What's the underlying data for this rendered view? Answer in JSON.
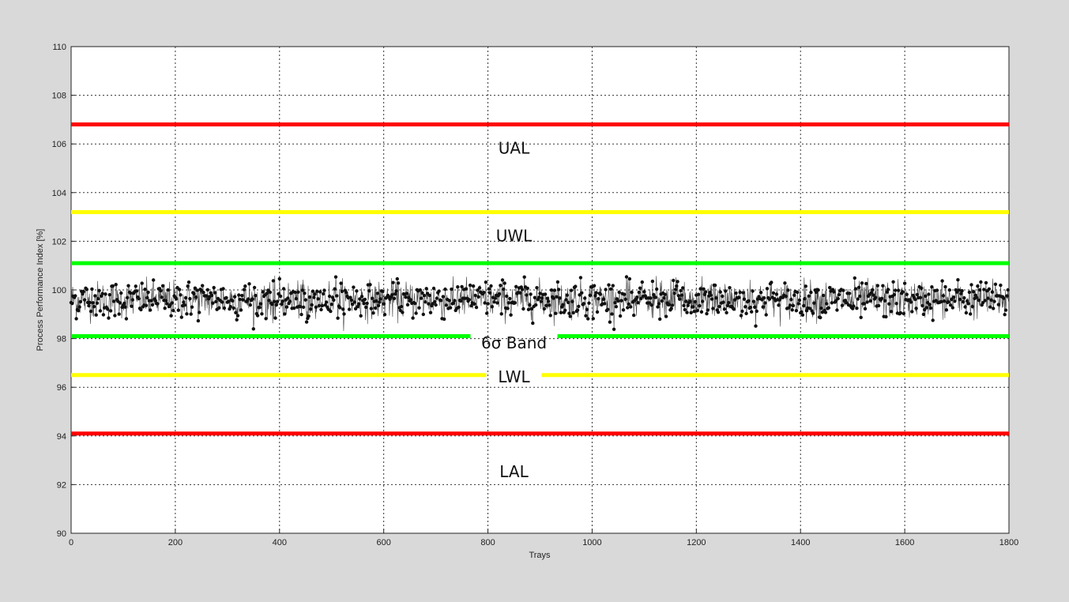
{
  "chart_data": {
    "type": "scatter",
    "title": "",
    "xlabel": "Trays",
    "ylabel": "Process Performance Index [%]",
    "xlim": [
      0,
      1800
    ],
    "ylim": [
      90,
      110
    ],
    "xticks": [
      0,
      200,
      400,
      600,
      800,
      1000,
      1200,
      1400,
      1600,
      1800
    ],
    "yticks": [
      90,
      92,
      94,
      96,
      98,
      100,
      102,
      104,
      106,
      108,
      110
    ],
    "grid": true,
    "series": [
      {
        "marker_color": "#111111",
        "points_summary": {
          "count": 1800,
          "mean": 99.6,
          "min": 98.3,
          "max": 100.6
        }
      }
    ],
    "limit_lines": [
      {
        "label": "UAL",
        "y": 106.8,
        "color": "#ff0000"
      },
      {
        "label": "UWL",
        "y": 103.2,
        "color": "#ffff00"
      },
      {
        "label": "",
        "y": 101.1,
        "color": "#00ff00"
      },
      {
        "label": "6σ Band",
        "y": 98.1,
        "color": "#00ff00"
      },
      {
        "label": "LWL",
        "y": 96.5,
        "color": "#ffff00"
      },
      {
        "label": "LAL",
        "y": 94.1,
        "color": "#ff0000"
      }
    ],
    "annotations": [
      {
        "text": "UAL",
        "x": 850,
        "y": 105.6
      },
      {
        "text": "UWL",
        "x": 850,
        "y": 102.0
      },
      {
        "text": "6σ Band",
        "x": 850,
        "y": 97.6
      },
      {
        "text": "LWL",
        "x": 850,
        "y": 96.2
      },
      {
        "text": "LAL",
        "x": 850,
        "y": 92.3
      }
    ]
  }
}
